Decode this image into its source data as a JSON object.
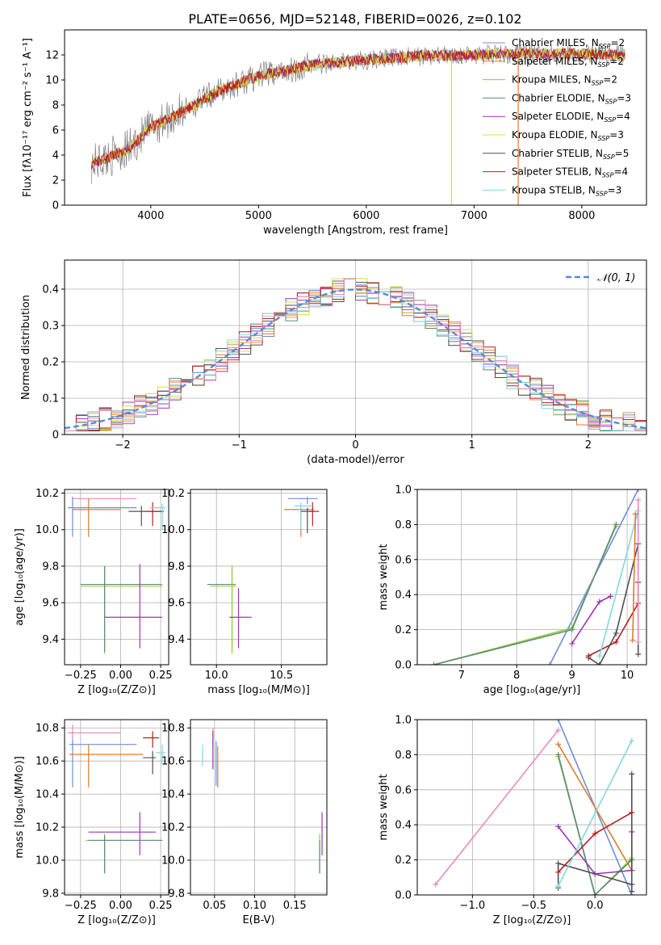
{
  "figure_title": "PLATE=0656, MJD=52148, FIBERID=0026, z=0.102",
  "colors": {
    "chabrier_miles": "#6b8fd9",
    "salpeter_miles": "#e07b2f",
    "kroupa_miles": "#e8953a",
    "chabrier_elodie": "#5b8a7a",
    "salpeter_elodie": "#9a35b5",
    "kroupa_elodie": "#cfe046",
    "chabrier_stelib": "#4f4f4f",
    "salpeter_stelib": "#b51e1e",
    "kroupa_stelib": "#7fd8e0",
    "data": "#808080",
    "normal": "#5a8ad6",
    "pink": "#e98ab8",
    "green": "#9ccf3a"
  },
  "chart_data": [
    {
      "id": "spectrum",
      "type": "line",
      "xlabel": "wavelength [Angstrom, rest frame]",
      "ylabel": "Flux [fλ10⁻¹⁷ erg cm⁻² s⁻¹ A⁻¹]",
      "xlim": [
        3200,
        8600
      ],
      "ylim": [
        0,
        14
      ],
      "xticks": [
        4000,
        5000,
        6000,
        7000,
        8000
      ],
      "yticks": [
        0,
        2,
        4,
        6,
        8,
        10,
        12
      ],
      "continuum": {
        "x": [
          3450,
          3600,
          3800,
          4000,
          4300,
          4600,
          5000,
          5500,
          6000,
          6500,
          7000,
          7500,
          8000,
          8400
        ],
        "y": [
          3.3,
          3.8,
          4.5,
          6.2,
          7.5,
          9.0,
          10.3,
          11.2,
          11.6,
          11.9,
          12.0,
          12.1,
          12.1,
          12.0
        ]
      },
      "spikes": [
        {
          "x": 6790,
          "y": 0.0,
          "label": "Kroupa ELODIE"
        },
        {
          "x": 7410,
          "y": 0.0,
          "label": "Salpeter MILES"
        }
      ],
      "legend": [
        {
          "key": "chabrier_miles",
          "label": "Chabrier MILES, N",
          "sub": "SSP",
          "tail": "=2"
        },
        {
          "key": "salpeter_miles",
          "label": "Salpeter MILES, N",
          "sub": "SSP",
          "tail": "=2"
        },
        {
          "key": "kroupa_miles",
          "label": "Kroupa MILES, N",
          "sub": "SSP",
          "tail": "=2"
        },
        {
          "key": "chabrier_elodie",
          "label": "Chabrier ELODIE, N",
          "sub": "SSP",
          "tail": "=3"
        },
        {
          "key": "salpeter_elodie",
          "label": "Salpeter ELODIE, N",
          "sub": "SSP",
          "tail": "=4"
        },
        {
          "key": "kroupa_elodie",
          "label": "Kroupa ELODIE, N",
          "sub": "SSP",
          "tail": "=3"
        },
        {
          "key": "chabrier_stelib",
          "label": "Chabrier STELIB, N",
          "sub": "SSP",
          "tail": "=5"
        },
        {
          "key": "salpeter_stelib",
          "label": "Salpeter STELIB, N",
          "sub": "SSP",
          "tail": "=4"
        },
        {
          "key": "kroupa_stelib",
          "label": "Kroupa STELIB, N",
          "sub": "SSP",
          "tail": "=3"
        }
      ]
    },
    {
      "id": "residuals",
      "type": "line",
      "xlabel": "(data-model)/error",
      "ylabel": "Normed distribution",
      "xlim": [
        -2.5,
        2.5
      ],
      "ylim": [
        0,
        0.48
      ],
      "xticks": [
        -2,
        -1,
        0,
        1,
        2
      ],
      "yticks": [
        0.0,
        0.1,
        0.2,
        0.3,
        0.4
      ],
      "legend_label": "𝒩(0, 1)",
      "bin_width": 0.1,
      "bin_start": -2.5
    },
    {
      "id": "age_vs_Z",
      "type": "scatter",
      "xlabel": "Z [log₁₀(Z/Z⊙)]",
      "ylabel": "age  [log₁₀(age/yr)]",
      "xlim": [
        -0.35,
        0.3
      ],
      "ylim": [
        9.26,
        10.22
      ],
      "xticks": [
        -0.25,
        0.0,
        0.25
      ],
      "yticks": [
        9.4,
        9.6,
        9.8,
        10.0,
        10.2
      ],
      "points": [
        {
          "c": "pink",
          "x": -0.3,
          "y": 10.17,
          "xl": -0.3,
          "xr": 0.1,
          "yd": 10.17,
          "yu": 10.17
        },
        {
          "c": "chabrier_miles",
          "x": -0.3,
          "y": 10.12,
          "xl": -0.33,
          "xr": 0.1,
          "yd": 9.96,
          "yu": 10.18
        },
        {
          "c": "salpeter_miles",
          "x": -0.2,
          "y": 10.11,
          "xl": -0.3,
          "xr": 0.0,
          "yd": 9.96,
          "yu": 10.17
        },
        {
          "c": "chabrier_stelib",
          "x": 0.13,
          "y": 10.1,
          "xl": 0.05,
          "xr": 0.25,
          "yd": 10.02,
          "yu": 10.13
        },
        {
          "c": "salpeter_stelib",
          "x": 0.2,
          "y": 10.1,
          "xl": 0.15,
          "xr": 0.27,
          "yd": 10.02,
          "yu": 10.15
        },
        {
          "c": "kroupa_stelib",
          "x": 0.26,
          "y": 10.12,
          "xl": 0.18,
          "xr": 0.28,
          "yd": 10.0,
          "yu": 10.14
        },
        {
          "c": "green",
          "x": -0.1,
          "y": 9.69,
          "xl": -0.25,
          "xr": 0.26,
          "yd": 9.32,
          "yu": 9.8
        },
        {
          "c": "chabrier_elodie",
          "x": -0.1,
          "y": 9.7,
          "xl": -0.25,
          "xr": 0.26,
          "yd": 9.33,
          "yu": 9.8
        },
        {
          "c": "salpeter_elodie",
          "x": 0.12,
          "y": 9.52,
          "xl": -0.1,
          "xr": 0.26,
          "yd": 9.35,
          "yu": 9.81
        }
      ]
    },
    {
      "id": "age_vs_mass",
      "type": "scatter",
      "xlabel": "mass [log₁₀(M/M⊙)]",
      "ylabel": "",
      "xlim": [
        9.8,
        10.85
      ],
      "ylim": [
        9.26,
        10.22
      ],
      "xticks": [
        10.0,
        10.5
      ],
      "yticks": [
        9.4,
        9.6,
        9.8,
        10.0,
        10.2
      ],
      "points": [
        {
          "c": "chabrier_miles",
          "x": 10.7,
          "y": 10.17,
          "xl": 10.55,
          "xr": 10.78,
          "yd": 10.14,
          "yu": 10.18
        },
        {
          "c": "salpeter_miles",
          "x": 10.65,
          "y": 10.11,
          "xl": 10.52,
          "xr": 10.75,
          "yd": 9.96,
          "yu": 10.13
        },
        {
          "c": "kroupa_stelib",
          "x": 10.65,
          "y": 10.13,
          "xl": 10.6,
          "xr": 10.73,
          "yd": 10.0,
          "yu": 10.15
        },
        {
          "c": "chabrier_stelib",
          "x": 10.7,
          "y": 10.1,
          "xl": 10.65,
          "xr": 10.75,
          "yd": 9.98,
          "yu": 10.12
        },
        {
          "c": "salpeter_stelib",
          "x": 10.74,
          "y": 10.1,
          "xl": 10.72,
          "xr": 10.79,
          "yd": 10.02,
          "yu": 10.15
        },
        {
          "c": "chabrier_elodie",
          "x": 10.12,
          "y": 9.7,
          "xl": 9.93,
          "xr": 10.15,
          "yd": 9.33,
          "yu": 9.8
        },
        {
          "c": "green",
          "x": 10.12,
          "y": 9.69,
          "xl": 9.95,
          "xr": 10.15,
          "yd": 9.32,
          "yu": 9.8
        },
        {
          "c": "salpeter_elodie",
          "x": 10.17,
          "y": 9.52,
          "xl": 10.1,
          "xr": 10.27,
          "yd": 9.35,
          "yu": 9.68
        }
      ]
    },
    {
      "id": "weight_vs_age",
      "type": "line",
      "xlabel": "age  [log₁₀(age/yr)]",
      "ylabel": "mass weight",
      "xlim": [
        6.2,
        10.35
      ],
      "ylim": [
        0,
        1
      ],
      "xticks": [
        7,
        8,
        9,
        10
      ],
      "yticks": [
        0.0,
        0.2,
        0.4,
        0.6,
        0.8,
        1.0
      ],
      "series": [
        {
          "c": "chabrier_miles",
          "x": [
            8.6,
            10.2
          ],
          "y": [
            0.0,
            1.0
          ]
        },
        {
          "c": "green",
          "x": [
            6.5,
            9.0,
            9.8
          ],
          "y": [
            0.0,
            0.21,
            0.79
          ]
        },
        {
          "c": "chabrier_elodie",
          "x": [
            6.5,
            9.0,
            9.8
          ],
          "y": [
            0.0,
            0.2,
            0.8
          ]
        },
        {
          "c": "salpeter_elodie",
          "x": [
            9.0,
            9.5,
            9.7
          ],
          "y": [
            0.12,
            0.36,
            0.39
          ]
        },
        {
          "c": "chabrier_stelib",
          "x": [
            9.3,
            9.5,
            9.8,
            10.2,
            10.2
          ],
          "y": [
            0.04,
            0.0,
            0.18,
            0.69,
            0.06
          ]
        },
        {
          "c": "salpeter_stelib",
          "x": [
            9.3,
            9.8,
            10.2,
            10.2
          ],
          "y": [
            0.05,
            0.13,
            0.35,
            0.47
          ]
        },
        {
          "c": "kroupa_stelib",
          "x": [
            9.5,
            10.2
          ],
          "y": [
            0.05,
            0.88
          ]
        },
        {
          "c": "pink",
          "x": [
            10.2,
            10.2
          ],
          "y": [
            0.13,
            0.94
          ]
        },
        {
          "c": "salpeter_miles",
          "x": [
            10.1,
            10.15
          ],
          "y": [
            0.14,
            0.86
          ]
        }
      ]
    },
    {
      "id": "mass_vs_Z",
      "type": "scatter",
      "xlabel": "Z [log₁₀(Z/Z⊙)]",
      "ylabel": "mass [log₁₀(M/M⊙)]",
      "xlim": [
        -0.35,
        0.3
      ],
      "ylim": [
        9.79,
        10.85
      ],
      "xticks": [
        -0.25,
        0.0,
        0.25
      ],
      "yticks": [
        9.8,
        10.0,
        10.2,
        10.4,
        10.6,
        10.8
      ],
      "points": [
        {
          "c": "pink",
          "x": -0.3,
          "y": 10.77,
          "xl": -0.33,
          "xr": 0.0,
          "yd": 10.72,
          "yu": 10.82
        },
        {
          "c": "chabrier_miles",
          "x": -0.3,
          "y": 10.7,
          "xl": -0.32,
          "xr": 0.1,
          "yd": 10.44,
          "yu": 10.73
        },
        {
          "c": "salpeter_miles",
          "x": -0.2,
          "y": 10.64,
          "xl": -0.32,
          "xr": 0.14,
          "yd": 10.44,
          "yu": 10.7
        },
        {
          "c": "chabrier_stelib",
          "x": 0.2,
          "y": 10.62,
          "xl": 0.14,
          "xr": 0.22,
          "yd": 10.52,
          "yu": 10.66
        },
        {
          "c": "salpeter_stelib",
          "x": 0.2,
          "y": 10.74,
          "xl": 0.14,
          "xr": 0.24,
          "yd": 10.68,
          "yu": 10.78
        },
        {
          "c": "kroupa_stelib",
          "x": 0.26,
          "y": 10.65,
          "xl": 0.22,
          "xr": 0.28,
          "yd": 10.58,
          "yu": 10.7
        },
        {
          "c": "salpeter_elodie",
          "x": 0.12,
          "y": 10.17,
          "xl": -0.2,
          "xr": 0.22,
          "yd": 10.03,
          "yu": 10.29
        },
        {
          "c": "green",
          "x": -0.1,
          "y": 10.12,
          "xl": -0.22,
          "xr": 0.26,
          "yd": 9.93,
          "yu": 10.16
        },
        {
          "c": "chabrier_elodie",
          "x": -0.1,
          "y": 10.12,
          "xl": -0.2,
          "xr": 0.26,
          "yd": 9.92,
          "yu": 10.15
        }
      ]
    },
    {
      "id": "mass_vs_ebv",
      "type": "scatter",
      "xlabel": "E(B-V)",
      "ylabel": "",
      "xlim": [
        0.02,
        0.19
      ],
      "ylim": [
        9.79,
        10.85
      ],
      "xticks": [
        0.05,
        0.1,
        0.15
      ],
      "yticks": [
        9.8,
        10.0,
        10.2,
        10.4,
        10.6,
        10.8
      ],
      "points": [
        {
          "c": "kroupa_stelib",
          "x": 0.035,
          "y": 10.63,
          "yd": 10.57,
          "yu": 10.7
        },
        {
          "c": "pink",
          "x": 0.048,
          "y": 10.78,
          "yd": 10.68,
          "yu": 10.8
        },
        {
          "c": "salpeter_elodie",
          "x": 0.048,
          "y": 10.7,
          "yd": 10.55,
          "yu": 10.78
        },
        {
          "c": "chabrier_miles",
          "x": 0.052,
          "y": 10.68,
          "yd": 10.45,
          "yu": 10.72
        },
        {
          "c": "salpeter_miles",
          "x": 0.054,
          "y": 10.62,
          "yd": 10.44,
          "yu": 10.69
        },
        {
          "c": "green",
          "x": 0.181,
          "y": 10.12,
          "yd": 9.92,
          "yu": 10.16
        },
        {
          "c": "salpeter_elodie",
          "x": 0.184,
          "y": 10.17,
          "yd": 10.03,
          "yu": 10.29
        },
        {
          "c": "chabrier_elodie",
          "x": 0.181,
          "y": 10.05,
          "yd": 9.92,
          "yu": 10.12
        }
      ]
    },
    {
      "id": "weight_vs_Z",
      "type": "line",
      "xlabel": "Z [log₁₀(Z/Z⊙)]",
      "ylabel": "mass weight",
      "xlim": [
        -1.45,
        0.42
      ],
      "ylim": [
        0,
        1
      ],
      "xticks": [
        -1.0,
        -0.5,
        0.0
      ],
      "yticks": [
        0.0,
        0.2,
        0.4,
        0.6,
        0.8,
        1.0
      ],
      "series": [
        {
          "c": "pink",
          "x": [
            -1.3,
            -0.3
          ],
          "y": [
            0.06,
            0.94
          ]
        },
        {
          "c": "chabrier_miles",
          "x": [
            -0.3,
            0.3
          ],
          "y": [
            1.0,
            0.0
          ]
        },
        {
          "c": "salpeter_miles",
          "x": [
            -0.3,
            0.3
          ],
          "y": [
            0.86,
            0.14
          ]
        },
        {
          "c": "green",
          "x": [
            -0.3,
            0.0,
            0.3
          ],
          "y": [
            0.79,
            0.0,
            0.21
          ]
        },
        {
          "c": "chabrier_elodie",
          "x": [
            -0.3,
            0.0,
            0.3
          ],
          "y": [
            0.8,
            0.0,
            0.2
          ]
        },
        {
          "c": "salpeter_elodie",
          "x": [
            -0.3,
            0.0,
            0.3,
            0.3
          ],
          "y": [
            0.39,
            0.12,
            0.14,
            0.36
          ]
        },
        {
          "c": "chabrier_stelib",
          "x": [
            -0.3,
            -0.3,
            0.3,
            0.3,
            0.3
          ],
          "y": [
            0.04,
            0.18,
            0.06,
            0.69,
            0.02
          ]
        },
        {
          "c": "salpeter_stelib",
          "x": [
            -0.3,
            0.0,
            0.3
          ],
          "y": [
            0.13,
            0.35,
            0.47
          ]
        },
        {
          "c": "kroupa_stelib",
          "x": [
            -0.3,
            0.3
          ],
          "y": [
            0.05,
            0.88
          ]
        }
      ]
    }
  ]
}
